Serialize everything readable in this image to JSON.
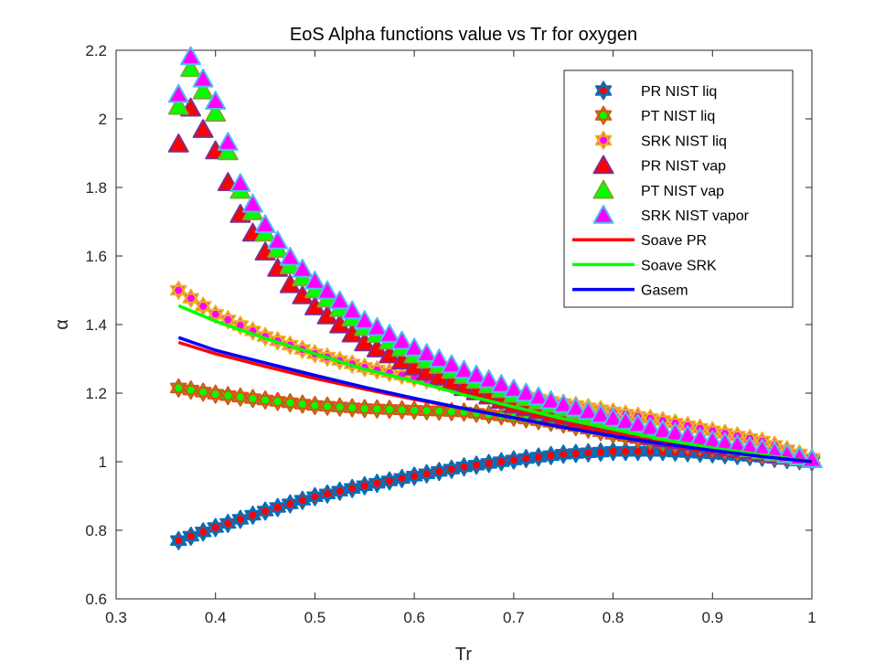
{
  "chart_data": {
    "type": "scatter",
    "title": "EoS Alpha functions value vs Tr for oxygen",
    "xlabel": "Tr",
    "ylabel": "α",
    "xlim": [
      0.3,
      1
    ],
    "ylim": [
      0.6,
      2.2
    ],
    "xticks": [
      "0.3",
      "0.4",
      "0.5",
      "0.6",
      "0.7",
      "0.8",
      "0.9",
      "1"
    ],
    "yticks": [
      "0.6",
      "0.8",
      "1",
      "1.2",
      "1.4",
      "1.6",
      "1.8",
      "2",
      "2.2"
    ],
    "grid": false,
    "legend_position": "top-right",
    "series": [
      {
        "name": "PR NIST liq",
        "kind": "markers",
        "marker": "hexagram",
        "edge_color": "#0072BD",
        "face_color": "#FF0000",
        "points": [
          [
            0.3628,
            0.77
          ],
          [
            0.4,
            0.808
          ],
          [
            0.45,
            0.856
          ],
          [
            0.5,
            0.898
          ],
          [
            0.55,
            0.93
          ],
          [
            0.6,
            0.958
          ],
          [
            0.65,
            0.985
          ],
          [
            0.7,
            1.005
          ],
          [
            0.75,
            1.022
          ],
          [
            0.8,
            1.03
          ],
          [
            0.85,
            1.03
          ],
          [
            0.9,
            1.023
          ],
          [
            0.95,
            1.013
          ],
          [
            1.0,
            1.0
          ]
        ]
      },
      {
        "name": "PT NIST liq",
        "kind": "markers",
        "marker": "hexagram",
        "edge_color": "#D95319",
        "face_color": "#00FF00",
        "points": [
          [
            0.3628,
            1.215
          ],
          [
            0.4,
            1.197
          ],
          [
            0.45,
            1.18
          ],
          [
            0.5,
            1.164
          ],
          [
            0.55,
            1.155
          ],
          [
            0.6,
            1.15
          ],
          [
            0.65,
            1.145
          ],
          [
            0.7,
            1.13
          ],
          [
            0.75,
            1.11
          ],
          [
            0.8,
            1.08
          ],
          [
            0.85,
            1.055
          ],
          [
            0.9,
            1.04
          ],
          [
            0.95,
            1.02
          ],
          [
            1.0,
            1.005
          ]
        ]
      },
      {
        "name": "SRK NIST liq",
        "kind": "markers",
        "marker": "hexagram",
        "edge_color": "#EDB120",
        "face_color": "#FF00FF",
        "points": [
          [
            0.3628,
            1.5
          ],
          [
            0.4,
            1.43
          ],
          [
            0.45,
            1.365
          ],
          [
            0.5,
            1.315
          ],
          [
            0.55,
            1.275
          ],
          [
            0.6,
            1.245
          ],
          [
            0.65,
            1.22
          ],
          [
            0.7,
            1.195
          ],
          [
            0.75,
            1.17
          ],
          [
            0.8,
            1.145
          ],
          [
            0.85,
            1.12
          ],
          [
            0.9,
            1.09
          ],
          [
            0.95,
            1.06
          ],
          [
            1.0,
            1.01
          ]
        ]
      },
      {
        "name": "PR NIST vap",
        "kind": "markers",
        "marker": "triangle",
        "edge_color": "#7E2F8E",
        "face_color": "#FF0000",
        "points": [
          [
            0.3628,
            1.925
          ],
          [
            0.375,
            2.03
          ],
          [
            0.4,
            1.905
          ],
          [
            0.425,
            1.72
          ],
          [
            0.45,
            1.61
          ],
          [
            0.475,
            1.515
          ],
          [
            0.5,
            1.45
          ],
          [
            0.55,
            1.345
          ],
          [
            0.6,
            1.275
          ],
          [
            0.65,
            1.215
          ],
          [
            0.7,
            1.165
          ],
          [
            0.75,
            1.13
          ],
          [
            0.8,
            1.095
          ],
          [
            0.85,
            1.065
          ],
          [
            0.9,
            1.045
          ],
          [
            0.95,
            1.025
          ],
          [
            1.0,
            1.005
          ]
        ]
      },
      {
        "name": "PT NIST vap",
        "kind": "markers",
        "marker": "triangle",
        "edge_color": "#77AC30",
        "face_color": "#00FF00",
        "points": [
          [
            0.3628,
            2.035
          ],
          [
            0.375,
            2.145
          ],
          [
            0.4,
            2.015
          ],
          [
            0.425,
            1.79
          ],
          [
            0.45,
            1.665
          ],
          [
            0.475,
            1.57
          ],
          [
            0.5,
            1.5
          ],
          [
            0.55,
            1.39
          ],
          [
            0.6,
            1.31
          ],
          [
            0.65,
            1.25
          ],
          [
            0.7,
            1.195
          ],
          [
            0.75,
            1.155
          ],
          [
            0.8,
            1.12
          ],
          [
            0.85,
            1.085
          ],
          [
            0.9,
            1.055
          ],
          [
            0.95,
            1.03
          ],
          [
            1.0,
            1.005
          ]
        ]
      },
      {
        "name": "SRK NIST vapor",
        "kind": "markers",
        "marker": "triangle",
        "edge_color": "#4DBEEE",
        "face_color": "#FF00FF",
        "points": [
          [
            0.3628,
            2.07
          ],
          [
            0.375,
            2.18
          ],
          [
            0.4,
            2.05
          ],
          [
            0.425,
            1.81
          ],
          [
            0.45,
            1.69
          ],
          [
            0.475,
            1.595
          ],
          [
            0.5,
            1.525
          ],
          [
            0.55,
            1.41
          ],
          [
            0.6,
            1.33
          ],
          [
            0.65,
            1.265
          ],
          [
            0.7,
            1.21
          ],
          [
            0.75,
            1.165
          ],
          [
            0.8,
            1.125
          ],
          [
            0.85,
            1.09
          ],
          [
            0.9,
            1.06
          ],
          [
            0.95,
            1.035
          ],
          [
            1.0,
            1.005
          ]
        ]
      },
      {
        "name": "Soave PR",
        "kind": "line",
        "color": "#FF0000",
        "points": [
          [
            0.3628,
            1.348
          ],
          [
            0.4,
            1.315
          ],
          [
            0.45,
            1.278
          ],
          [
            0.5,
            1.243
          ],
          [
            0.55,
            1.212
          ],
          [
            0.6,
            1.182
          ],
          [
            0.65,
            1.155
          ],
          [
            0.7,
            1.128
          ],
          [
            0.75,
            1.102
          ],
          [
            0.8,
            1.078
          ],
          [
            0.85,
            1.055
          ],
          [
            0.9,
            1.035
          ],
          [
            0.95,
            1.017
          ],
          [
            1.0,
            1.0
          ]
        ]
      },
      {
        "name": "Soave SRK",
        "kind": "line",
        "color": "#00FF00",
        "points": [
          [
            0.3628,
            1.455
          ],
          [
            0.4,
            1.41
          ],
          [
            0.45,
            1.36
          ],
          [
            0.5,
            1.315
          ],
          [
            0.55,
            1.27
          ],
          [
            0.6,
            1.235
          ],
          [
            0.65,
            1.195
          ],
          [
            0.7,
            1.16
          ],
          [
            0.75,
            1.125
          ],
          [
            0.8,
            1.095
          ],
          [
            0.85,
            1.065
          ],
          [
            0.9,
            1.04
          ],
          [
            0.95,
            1.02
          ],
          [
            1.0,
            1.0
          ]
        ]
      },
      {
        "name": "Gasem",
        "kind": "line",
        "color": "#0000FF",
        "points": [
          [
            0.3628,
            1.362
          ],
          [
            0.4,
            1.325
          ],
          [
            0.45,
            1.288
          ],
          [
            0.5,
            1.252
          ],
          [
            0.55,
            1.217
          ],
          [
            0.6,
            1.185
          ],
          [
            0.65,
            1.155
          ],
          [
            0.7,
            1.128
          ],
          [
            0.75,
            1.1
          ],
          [
            0.8,
            1.075
          ],
          [
            0.85,
            1.052
          ],
          [
            0.9,
            1.033
          ],
          [
            0.95,
            1.015
          ],
          [
            1.0,
            1.0
          ]
        ]
      }
    ]
  }
}
